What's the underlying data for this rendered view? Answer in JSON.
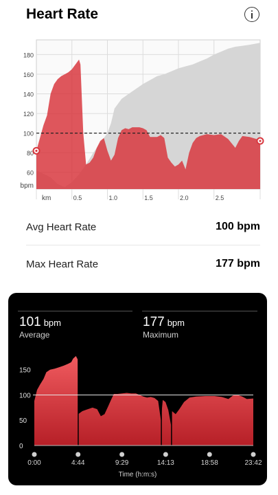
{
  "header": {
    "title": "Heart Rate",
    "info_icon": "info-circle-icon"
  },
  "top_chart": {
    "type": "area",
    "y_ticks": [
      "180",
      "160",
      "140",
      "120",
      "100",
      "80",
      "60"
    ],
    "y_unit": "bpm",
    "x_unit": "km",
    "x_ticks": [
      "0.5",
      "1.0",
      "1.5",
      "2.0",
      "2.5"
    ],
    "x_tick_values": [
      0.5,
      1.0,
      1.5,
      2.0,
      2.5
    ],
    "xlim": [
      0,
      3.15
    ],
    "ylim": [
      43,
      195
    ],
    "avg_line": 100,
    "colors": {
      "heart_rate": "#d8383f",
      "elevation": "#d6d6d6"
    },
    "hr_series": [
      [
        0,
        82
      ],
      [
        0.05,
        95
      ],
      [
        0.1,
        108
      ],
      [
        0.15,
        118
      ],
      [
        0.2,
        140
      ],
      [
        0.25,
        150
      ],
      [
        0.3,
        155
      ],
      [
        0.35,
        158
      ],
      [
        0.4,
        160
      ],
      [
        0.45,
        162
      ],
      [
        0.5,
        165
      ],
      [
        0.55,
        170
      ],
      [
        0.6,
        175
      ],
      [
        0.62,
        170
      ],
      [
        0.66,
        100
      ],
      [
        0.7,
        68
      ],
      [
        0.75,
        70
      ],
      [
        0.8,
        75
      ],
      [
        0.85,
        85
      ],
      [
        0.9,
        92
      ],
      [
        0.95,
        95
      ],
      [
        1.0,
        82
      ],
      [
        1.05,
        72
      ],
      [
        1.1,
        78
      ],
      [
        1.15,
        95
      ],
      [
        1.2,
        103
      ],
      [
        1.25,
        105
      ],
      [
        1.3,
        104
      ],
      [
        1.35,
        106
      ],
      [
        1.4,
        106
      ],
      [
        1.45,
        106
      ],
      [
        1.5,
        105
      ],
      [
        1.55,
        103
      ],
      [
        1.6,
        96
      ],
      [
        1.65,
        96
      ],
      [
        1.7,
        96
      ],
      [
        1.75,
        98
      ],
      [
        1.8,
        95
      ],
      [
        1.85,
        75
      ],
      [
        1.9,
        70
      ],
      [
        1.95,
        66
      ],
      [
        2.0,
        68
      ],
      [
        2.05,
        72
      ],
      [
        2.1,
        63
      ],
      [
        2.15,
        80
      ],
      [
        2.2,
        90
      ],
      [
        2.25,
        95
      ],
      [
        2.3,
        97
      ],
      [
        2.35,
        98
      ],
      [
        2.4,
        99
      ],
      [
        2.5,
        98
      ],
      [
        2.6,
        99
      ],
      [
        2.7,
        94
      ],
      [
        2.8,
        85
      ],
      [
        2.85,
        92
      ],
      [
        2.9,
        97
      ],
      [
        3.0,
        96
      ],
      [
        3.1,
        94
      ],
      [
        3.15,
        92
      ]
    ],
    "elevation_series": [
      [
        0,
        62
      ],
      [
        0.2,
        55
      ],
      [
        0.3,
        48
      ],
      [
        0.4,
        45
      ],
      [
        0.5,
        50
      ],
      [
        0.6,
        58
      ],
      [
        0.7,
        68
      ],
      [
        0.8,
        80
      ],
      [
        0.9,
        90
      ],
      [
        1.0,
        100
      ],
      [
        1.05,
        110
      ],
      [
        1.1,
        125
      ],
      [
        1.2,
        135
      ],
      [
        1.3,
        140
      ],
      [
        1.4,
        145
      ],
      [
        1.5,
        150
      ],
      [
        1.6,
        154
      ],
      [
        1.7,
        158
      ],
      [
        1.8,
        160
      ],
      [
        1.9,
        163
      ],
      [
        2.0,
        166
      ],
      [
        2.1,
        168
      ],
      [
        2.2,
        170
      ],
      [
        2.3,
        173
      ],
      [
        2.4,
        176
      ],
      [
        2.5,
        180
      ],
      [
        2.6,
        183
      ],
      [
        2.7,
        186
      ],
      [
        2.8,
        188
      ],
      [
        2.9,
        189
      ],
      [
        3.0,
        190
      ],
      [
        3.15,
        192
      ]
    ]
  },
  "stats": {
    "avg_label": "Avg Heart Rate",
    "avg_value": "100 bpm",
    "max_label": "Max Heart Rate",
    "max_value": "177 bpm"
  },
  "card": {
    "average": {
      "value": "101",
      "unit": "bpm",
      "label": "Average"
    },
    "maximum": {
      "value": "177",
      "unit": "bpm",
      "label": "Maximum"
    },
    "axis_title": "Time (h:m:s)",
    "chart": {
      "type": "area",
      "y_ticks": [
        150,
        100,
        50
      ],
      "ylim": [
        0,
        185
      ],
      "x_ticks": [
        "0:00",
        "4:44",
        "9:29",
        "14:13",
        "18:58",
        "23:42"
      ],
      "x_tick_values": [
        0,
        4.733,
        9.483,
        14.217,
        18.967,
        23.7
      ],
      "xlim": [
        0,
        23.7
      ],
      "gridline": 100,
      "colors": {
        "fill_top": "#f05b5f",
        "fill_bottom": "#b61f27"
      },
      "series": [
        [
          0,
          88
        ],
        [
          0.3,
          110
        ],
        [
          0.6,
          120
        ],
        [
          1.0,
          132
        ],
        [
          1.3,
          145
        ],
        [
          1.7,
          150
        ],
        [
          2.2,
          152
        ],
        [
          2.7,
          155
        ],
        [
          3.2,
          158
        ],
        [
          3.7,
          162
        ],
        [
          4.0,
          165
        ],
        [
          4.2,
          172
        ],
        [
          4.5,
          177
        ],
        [
          4.7,
          170
        ],
        [
          4.75,
          62
        ],
        [
          5.2,
          68
        ],
        [
          5.8,
          72
        ],
        [
          6.3,
          75
        ],
        [
          6.8,
          72
        ],
        [
          7.2,
          58
        ],
        [
          7.6,
          62
        ],
        [
          8.0,
          78
        ],
        [
          8.3,
          90
        ],
        [
          8.6,
          102
        ],
        [
          9.0,
          102
        ],
        [
          9.5,
          103
        ],
        [
          10.0,
          104
        ],
        [
          10.5,
          103
        ],
        [
          11.0,
          103
        ],
        [
          11.4,
          100
        ],
        [
          11.8,
          97
        ],
        [
          12.2,
          95
        ],
        [
          12.6,
          96
        ],
        [
          13.0,
          94
        ],
        [
          13.4,
          88
        ],
        [
          13.7,
          50
        ],
        [
          13.9,
          90
        ],
        [
          14.2,
          86
        ],
        [
          14.5,
          70
        ],
        [
          14.8,
          40
        ],
        [
          14.9,
          68
        ],
        [
          15.3,
          62
        ],
        [
          15.7,
          72
        ],
        [
          16.2,
          86
        ],
        [
          16.8,
          95
        ],
        [
          17.5,
          97
        ],
        [
          18.5,
          98
        ],
        [
          19.5,
          98
        ],
        [
          20.3,
          96
        ],
        [
          21.0,
          92
        ],
        [
          21.5,
          99
        ],
        [
          22.0,
          100
        ],
        [
          22.5,
          97
        ],
        [
          23.0,
          92
        ],
        [
          23.7,
          93
        ]
      ]
    }
  }
}
